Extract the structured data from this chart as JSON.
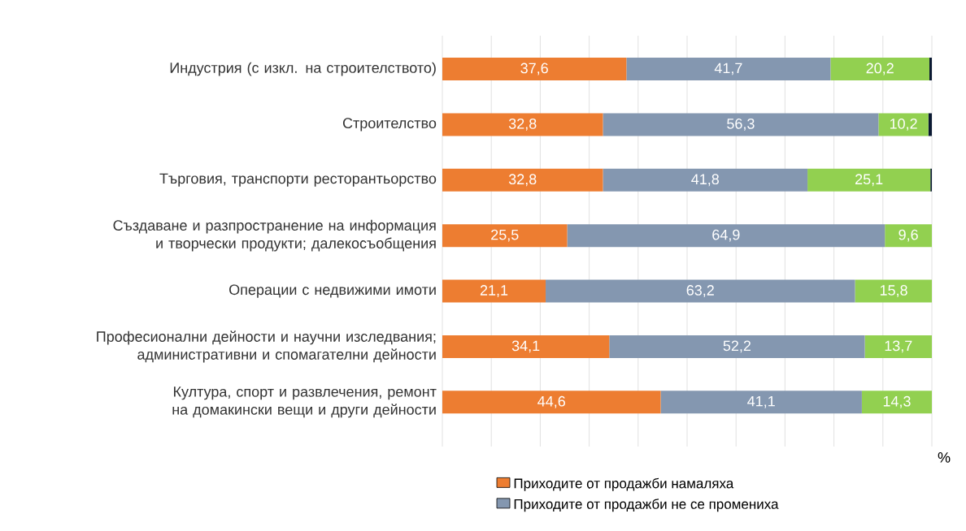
{
  "chart_data": {
    "type": "bar",
    "orientation": "horizontal",
    "stacked": true,
    "categories": [
      "Индустрия (с изкл. на строителството)",
      "Строителство",
      "Търговия, транспорти ресторантьорство",
      "Създаване и разпространение на информация и творчески продукти; далекосъобщения",
      "Операции с недвижими имоти",
      "Професионални дейности и научни изследвания; административни и спомагателни дейности",
      "Култура, спорт и развлечения, ремонт на домакински вещи и други дейности"
    ],
    "series": [
      {
        "name": "Приходите от продажби намаляха",
        "color": "#ed7d31",
        "values": [
          37.6,
          32.8,
          32.8,
          25.5,
          21.1,
          34.1,
          44.6
        ],
        "value_labels": [
          "37,6",
          "32,8",
          "32,8",
          "25,5",
          "21,1",
          "34,1",
          "44,6"
        ]
      },
      {
        "name": "Приходите от продажби не се промениха",
        "color": "#8497b0",
        "values": [
          41.7,
          56.3,
          41.8,
          64.9,
          63.2,
          52.2,
          41.1
        ],
        "value_labels": [
          "41,7",
          "56,3",
          "41,8",
          "64,9",
          "63,2",
          "52,2",
          "41,1"
        ]
      },
      {
        "color": "#92d050",
        "values": [
          20.2,
          10.2,
          25.1,
          9.6,
          15.8,
          13.7,
          14.3
        ],
        "value_labels": [
          "20,2",
          "10,2",
          "25,1",
          "9,6",
          "15,8",
          "13,7",
          "14,3"
        ]
      },
      {
        "color": "#0b1a33",
        "values": [
          0.5,
          0.7,
          0.3,
          null,
          null,
          null,
          null
        ]
      }
    ],
    "xlim": [
      0,
      100
    ],
    "xticks": [
      {
        "value": 0,
        "label": null
      },
      {
        "value": 10,
        "label": null
      },
      {
        "value": 20,
        "label": null
      },
      {
        "value": 30,
        "label": null
      },
      {
        "value": 40,
        "label": null
      },
      {
        "value": 50,
        "label": null
      },
      {
        "value": 60,
        "label": null
      },
      {
        "value": 70,
        "label": null
      },
      {
        "value": 80,
        "label": null
      },
      {
        "value": 90,
        "label": null
      },
      {
        "value": 100,
        "label": null
      }
    ],
    "xlabel": "%",
    "grid": "x",
    "legend": "bottom",
    "tick_labels": "y"
  }
}
